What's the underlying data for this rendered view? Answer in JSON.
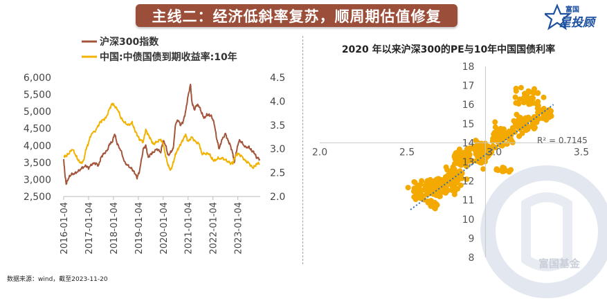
{
  "title": "主线二：经济低斜率复苏，顺周期估值修复",
  "brand": {
    "top": "富国",
    "name": "星投顾"
  },
  "watermark": "富国基金",
  "source": "数据来源：wind，截至2023-11-20",
  "colors": {
    "csi300": "#a3553b",
    "bond": "#f2b200",
    "scatter": "#f4a900",
    "trend": "#2f6db5",
    "banner": "#9b4e3a"
  },
  "chart_data": [
    {
      "type": "line",
      "legend": [
        "沪深300指数",
        "中国:中债国债到期收益率:10年"
      ],
      "x_ticks": [
        "2016-01-04",
        "2017-01-04",
        "2018-01-04",
        "2019-01-04",
        "2020-01-04",
        "2021-01-04",
        "2022-01-04",
        "2023-01-04"
      ],
      "y_left": {
        "ticks": [
          "2,500",
          "3,000",
          "3,500",
          "4,000",
          "4,500",
          "5,000",
          "5,500",
          "6,000"
        ],
        "range": [
          2500,
          6000
        ]
      },
      "y_right": {
        "ticks": [
          "2.0",
          "2.5",
          "3.0",
          "3.5",
          "4.0",
          "4.5"
        ],
        "range": [
          2.0,
          4.5
        ]
      },
      "x_range": [
        2016.0,
        2023.9
      ],
      "series": [
        {
          "name": "沪深300指数",
          "axis": "left",
          "points": [
            [
              2016.0,
              3600
            ],
            [
              2016.05,
              3150
            ],
            [
              2016.1,
              2870
            ],
            [
              2016.2,
              3050
            ],
            [
              2016.3,
              3150
            ],
            [
              2016.45,
              3180
            ],
            [
              2016.6,
              3250
            ],
            [
              2016.75,
              3350
            ],
            [
              2016.9,
              3400
            ],
            [
              2017.0,
              3340
            ],
            [
              2017.15,
              3460
            ],
            [
              2017.3,
              3480
            ],
            [
              2017.4,
              3400
            ],
            [
              2017.5,
              3650
            ],
            [
              2017.6,
              3750
            ],
            [
              2017.75,
              3850
            ],
            [
              2017.85,
              4050
            ],
            [
              2017.95,
              4100
            ],
            [
              2018.05,
              4350
            ],
            [
              2018.15,
              4050
            ],
            [
              2018.3,
              3850
            ],
            [
              2018.45,
              3500
            ],
            [
              2018.6,
              3400
            ],
            [
              2018.75,
              3300
            ],
            [
              2018.85,
              3200
            ],
            [
              2018.95,
              3050
            ],
            [
              2019.05,
              3250
            ],
            [
              2019.2,
              3900
            ],
            [
              2019.3,
              4000
            ],
            [
              2019.4,
              3650
            ],
            [
              2019.5,
              3750
            ],
            [
              2019.6,
              3800
            ],
            [
              2019.75,
              3900
            ],
            [
              2019.9,
              3800
            ],
            [
              2020.0,
              4150
            ],
            [
              2020.1,
              4000
            ],
            [
              2020.2,
              3700
            ],
            [
              2020.3,
              3800
            ],
            [
              2020.4,
              3900
            ],
            [
              2020.5,
              4650
            ],
            [
              2020.6,
              4750
            ],
            [
              2020.7,
              4600
            ],
            [
              2020.8,
              4700
            ],
            [
              2020.9,
              5000
            ],
            [
              2021.0,
              5450
            ],
            [
              2021.1,
              5800
            ],
            [
              2021.15,
              5300
            ],
            [
              2021.25,
              5050
            ],
            [
              2021.35,
              5200
            ],
            [
              2021.45,
              5150
            ],
            [
              2021.55,
              4950
            ],
            [
              2021.65,
              4800
            ],
            [
              2021.75,
              4900
            ],
            [
              2021.85,
              4900
            ],
            [
              2021.95,
              4850
            ],
            [
              2022.05,
              4650
            ],
            [
              2022.15,
              4200
            ],
            [
              2022.25,
              3900
            ],
            [
              2022.35,
              4150
            ],
            [
              2022.5,
              4350
            ],
            [
              2022.6,
              4150
            ],
            [
              2022.7,
              4000
            ],
            [
              2022.8,
              3750
            ],
            [
              2022.85,
              3500
            ],
            [
              2022.95,
              3850
            ],
            [
              2023.05,
              4150
            ],
            [
              2023.15,
              4100
            ],
            [
              2023.3,
              3950
            ],
            [
              2023.45,
              3950
            ],
            [
              2023.55,
              3850
            ],
            [
              2023.65,
              3800
            ],
            [
              2023.75,
              3650
            ],
            [
              2023.88,
              3600
            ]
          ]
        },
        {
          "name": "中国:中债国债到期收益率:10年",
          "axis": "right",
          "points": [
            [
              2016.0,
              2.85
            ],
            [
              2016.1,
              2.85
            ],
            [
              2016.2,
              2.9
            ],
            [
              2016.35,
              3.0
            ],
            [
              2016.5,
              2.85
            ],
            [
              2016.6,
              2.75
            ],
            [
              2016.7,
              2.7
            ],
            [
              2016.8,
              2.75
            ],
            [
              2016.9,
              3.0
            ],
            [
              2016.98,
              3.1
            ],
            [
              2017.1,
              3.3
            ],
            [
              2017.3,
              3.4
            ],
            [
              2017.45,
              3.55
            ],
            [
              2017.55,
              3.6
            ],
            [
              2017.7,
              3.65
            ],
            [
              2017.85,
              3.85
            ],
            [
              2017.95,
              3.95
            ],
            [
              2018.05,
              3.9
            ],
            [
              2018.2,
              3.8
            ],
            [
              2018.3,
              3.65
            ],
            [
              2018.45,
              3.55
            ],
            [
              2018.6,
              3.5
            ],
            [
              2018.75,
              3.55
            ],
            [
              2018.85,
              3.4
            ],
            [
              2018.95,
              3.3
            ],
            [
              2019.05,
              3.2
            ],
            [
              2019.2,
              3.15
            ],
            [
              2019.3,
              3.4
            ],
            [
              2019.4,
              3.3
            ],
            [
              2019.5,
              3.2
            ],
            [
              2019.6,
              3.1
            ],
            [
              2019.75,
              3.15
            ],
            [
              2019.9,
              3.2
            ],
            [
              2020.0,
              3.1
            ],
            [
              2020.1,
              2.85
            ],
            [
              2020.2,
              2.65
            ],
            [
              2020.3,
              2.55
            ],
            [
              2020.4,
              2.7
            ],
            [
              2020.5,
              2.9
            ],
            [
              2020.6,
              3.0
            ],
            [
              2020.7,
              3.1
            ],
            [
              2020.8,
              3.2
            ],
            [
              2020.9,
              3.3
            ],
            [
              2021.0,
              3.15
            ],
            [
              2021.15,
              3.25
            ],
            [
              2021.3,
              3.15
            ],
            [
              2021.45,
              3.1
            ],
            [
              2021.55,
              2.9
            ],
            [
              2021.7,
              2.9
            ],
            [
              2021.85,
              2.9
            ],
            [
              2021.95,
              2.8
            ],
            [
              2022.05,
              2.75
            ],
            [
              2022.2,
              2.8
            ],
            [
              2022.4,
              2.8
            ],
            [
              2022.55,
              2.75
            ],
            [
              2022.7,
              2.7
            ],
            [
              2022.8,
              2.7
            ],
            [
              2022.9,
              2.85
            ],
            [
              2023.0,
              2.9
            ],
            [
              2023.15,
              2.85
            ],
            [
              2023.3,
              2.75
            ],
            [
              2023.45,
              2.7
            ],
            [
              2023.6,
              2.6
            ],
            [
              2023.7,
              2.65
            ],
            [
              2023.8,
              2.7
            ],
            [
              2023.88,
              2.68
            ]
          ]
        }
      ]
    },
    {
      "type": "scatter",
      "title": "2020 年以来沪深300的PE与10年中国国债利率",
      "x_ticks": [
        "2.0",
        "2.5",
        "3.0",
        "3.5"
      ],
      "y_ticks": [
        "8",
        "9",
        "10",
        "11",
        "12",
        "13",
        "14",
        "15",
        "16",
        "17",
        "18"
      ],
      "x_range": [
        2.0,
        3.5
      ],
      "y_range": [
        8,
        18
      ],
      "x_axis_crosses_y": 14,
      "trendline": {
        "x": [
          2.52,
          3.34
        ],
        "y": [
          10.5,
          16.0
        ]
      },
      "r2_label": "R² = 0.7145",
      "clusters": [
        {
          "cx": 2.58,
          "cy": 11.5,
          "sx": 0.05,
          "sy": 0.5,
          "n": 40
        },
        {
          "cx": 2.68,
          "cy": 11.7,
          "sx": 0.06,
          "sy": 0.45,
          "n": 70
        },
        {
          "cx": 2.78,
          "cy": 12.2,
          "sx": 0.05,
          "sy": 0.6,
          "n": 60
        },
        {
          "cx": 2.82,
          "cy": 13.2,
          "sx": 0.05,
          "sy": 0.4,
          "n": 40
        },
        {
          "cx": 2.92,
          "cy": 13.5,
          "sx": 0.07,
          "sy": 0.6,
          "n": 70
        },
        {
          "cx": 3.05,
          "cy": 14.3,
          "sx": 0.08,
          "sy": 0.5,
          "n": 60
        },
        {
          "cx": 3.18,
          "cy": 15.0,
          "sx": 0.07,
          "sy": 0.4,
          "n": 60
        },
        {
          "cx": 3.2,
          "cy": 16.3,
          "sx": 0.07,
          "sy": 0.55,
          "n": 40
        },
        {
          "cx": 3.3,
          "cy": 15.5,
          "sx": 0.04,
          "sy": 0.3,
          "n": 20
        },
        {
          "cx": 3.05,
          "cy": 12.6,
          "sx": 0.05,
          "sy": 0.15,
          "n": 15
        },
        {
          "cx": 2.65,
          "cy": 10.8,
          "sx": 0.04,
          "sy": 0.2,
          "n": 15
        }
      ]
    }
  ]
}
